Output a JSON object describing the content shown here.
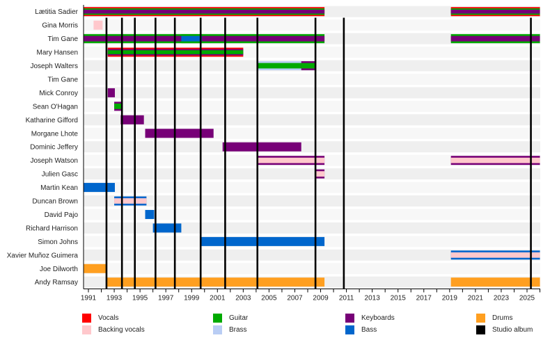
{
  "chart_data": {
    "type": "timeline",
    "title": "",
    "x_range": [
      1990.6,
      2026.0
    ],
    "x_ticks": [
      1991,
      1993,
      1995,
      1997,
      1999,
      2001,
      2003,
      2005,
      2007,
      2009,
      2011,
      2013,
      2015,
      2017,
      2019,
      2021,
      2023,
      2025
    ],
    "grid": "alternating row bands",
    "legend_placement": "bottom",
    "roles": {
      "vocals": {
        "label": "Vocals",
        "color": "#ff0000"
      },
      "backing_vocals": {
        "label": "Backing vocals",
        "color": "#ffc8cc"
      },
      "guitar": {
        "label": "Guitar",
        "color": "#00aa00"
      },
      "brass": {
        "label": "Brass",
        "color": "#b9cdf4"
      },
      "keyboards": {
        "label": "Keyboards",
        "color": "#770077"
      },
      "bass": {
        "label": "Bass",
        "color": "#0066cc"
      },
      "drums": {
        "label": "Drums",
        "color": "#ff9f20"
      },
      "album": {
        "label": "Studio album",
        "color": "#000000"
      }
    },
    "legend_order": [
      "vocals",
      "backing_vocals",
      "guitar",
      "brass",
      "keyboards",
      "bass",
      "drums",
      "album"
    ],
    "members": [
      {
        "name": "Lætitia Sadier",
        "periods": [
          {
            "start": 1990.6,
            "end": 2009.3,
            "layers": [
              "vocals",
              "guitar",
              "keyboards"
            ]
          },
          {
            "start": 2019.1,
            "end": 2026.0,
            "layers": [
              "vocals",
              "guitar",
              "keyboards"
            ]
          }
        ]
      },
      {
        "name": "Gina Morris",
        "periods": [
          {
            "start": 1991.4,
            "end": 1992.1,
            "layers": [
              "backing_vocals"
            ]
          }
        ]
      },
      {
        "name": "Tim Gane",
        "periods": [
          {
            "start": 1990.6,
            "end": 2009.3,
            "layers": [
              "guitar",
              "keyboards"
            ]
          },
          {
            "start": 1998.2,
            "end": 1999.8,
            "layers": [
              "guitar",
              "bass"
            ]
          },
          {
            "start": 2019.1,
            "end": 2026.0,
            "layers": [
              "guitar",
              "keyboards"
            ]
          }
        ]
      },
      {
        "name": "Mary Hansen",
        "periods": [
          {
            "start": 1992.5,
            "end": 2003.0,
            "layers": [
              "vocals",
              "keyboards",
              "guitar"
            ]
          }
        ]
      },
      {
        "name": "Joseph Walters",
        "periods": [
          {
            "start": 2004.1,
            "end": 2008.6,
            "layers": [
              "brass",
              "guitar"
            ]
          },
          {
            "start": 2007.5,
            "end": 2008.6,
            "layers": [
              "keyboards",
              "guitar"
            ]
          }
        ]
      },
      {
        "name": "Tim Gane",
        "periods": []
      },
      {
        "name": "Mick Conroy",
        "periods": [
          {
            "start": 1992.5,
            "end": 1993.05,
            "layers": [
              "keyboards"
            ]
          }
        ]
      },
      {
        "name": "Sean O'Hagan",
        "periods": [
          {
            "start": 1993.0,
            "end": 1993.55,
            "layers": [
              "keyboards",
              "guitar"
            ]
          }
        ]
      },
      {
        "name": "Katharine Gifford",
        "periods": [
          {
            "start": 1993.5,
            "end": 1995.3,
            "layers": [
              "keyboards"
            ]
          }
        ]
      },
      {
        "name": "Morgane Lhote",
        "periods": [
          {
            "start": 1995.4,
            "end": 2000.7,
            "layers": [
              "keyboards"
            ]
          }
        ]
      },
      {
        "name": "Dominic Jeffery",
        "periods": [
          {
            "start": 2001.4,
            "end": 2007.5,
            "layers": [
              "keyboards"
            ]
          }
        ]
      },
      {
        "name": "Joseph Watson",
        "periods": [
          {
            "start": 2004.1,
            "end": 2009.3,
            "layers": [
              "keyboards",
              "backing_vocals"
            ]
          },
          {
            "start": 2019.1,
            "end": 2026.0,
            "layers": [
              "keyboards",
              "backing_vocals"
            ]
          }
        ]
      },
      {
        "name": "Julien Gasc",
        "periods": [
          {
            "start": 2008.65,
            "end": 2009.3,
            "layers": [
              "keyboards",
              "backing_vocals"
            ]
          }
        ]
      },
      {
        "name": "Martin Kean",
        "periods": [
          {
            "start": 1990.6,
            "end": 1993.05,
            "layers": [
              "bass"
            ]
          }
        ]
      },
      {
        "name": "Duncan Brown",
        "periods": [
          {
            "start": 1993.0,
            "end": 1995.5,
            "layers": [
              "bass",
              "backing_vocals"
            ]
          }
        ]
      },
      {
        "name": "David Pajo",
        "periods": [
          {
            "start": 1995.4,
            "end": 1996.1,
            "layers": [
              "bass"
            ]
          }
        ]
      },
      {
        "name": "Richard Harrison",
        "periods": [
          {
            "start": 1996.0,
            "end": 1998.2,
            "layers": [
              "bass"
            ]
          }
        ]
      },
      {
        "name": "Simon Johns",
        "periods": [
          {
            "start": 1999.7,
            "end": 2009.3,
            "layers": [
              "bass"
            ]
          }
        ]
      },
      {
        "name": "Xavier Muñoz Guimera",
        "periods": [
          {
            "start": 2019.1,
            "end": 2026.0,
            "layers": [
              "bass",
              "backing_vocals"
            ]
          }
        ]
      },
      {
        "name": "Joe Dilworth",
        "periods": [
          {
            "start": 1990.6,
            "end": 1992.4,
            "layers": [
              "drums"
            ]
          }
        ]
      },
      {
        "name": "Andy Ramsay",
        "periods": [
          {
            "start": 1992.4,
            "end": 2009.3,
            "layers": [
              "drums"
            ]
          },
          {
            "start": 2019.1,
            "end": 2026.0,
            "layers": [
              "drums"
            ]
          }
        ]
      }
    ],
    "albums": [
      1992.4,
      1993.6,
      1994.6,
      1996.2,
      1997.7,
      1999.7,
      2001.6,
      2004.1,
      2008.6,
      2010.8,
      2025.3
    ]
  },
  "legend": [
    {
      "key": "vocals",
      "label": "Vocals",
      "color": "#ff0000"
    },
    {
      "key": "backing_vocals",
      "label": "Backing vocals",
      "color": "#ffc8cc"
    },
    {
      "key": "guitar",
      "label": "Guitar",
      "color": "#00aa00"
    },
    {
      "key": "brass",
      "label": "Brass",
      "color": "#b9cdf4"
    },
    {
      "key": "keyboards",
      "label": "Keyboards",
      "color": "#770077"
    },
    {
      "key": "bass",
      "label": "Bass",
      "color": "#0066cc"
    },
    {
      "key": "drums",
      "label": "Drums",
      "color": "#ff9f20"
    },
    {
      "key": "album",
      "label": "Studio album",
      "color": "#000000"
    }
  ]
}
